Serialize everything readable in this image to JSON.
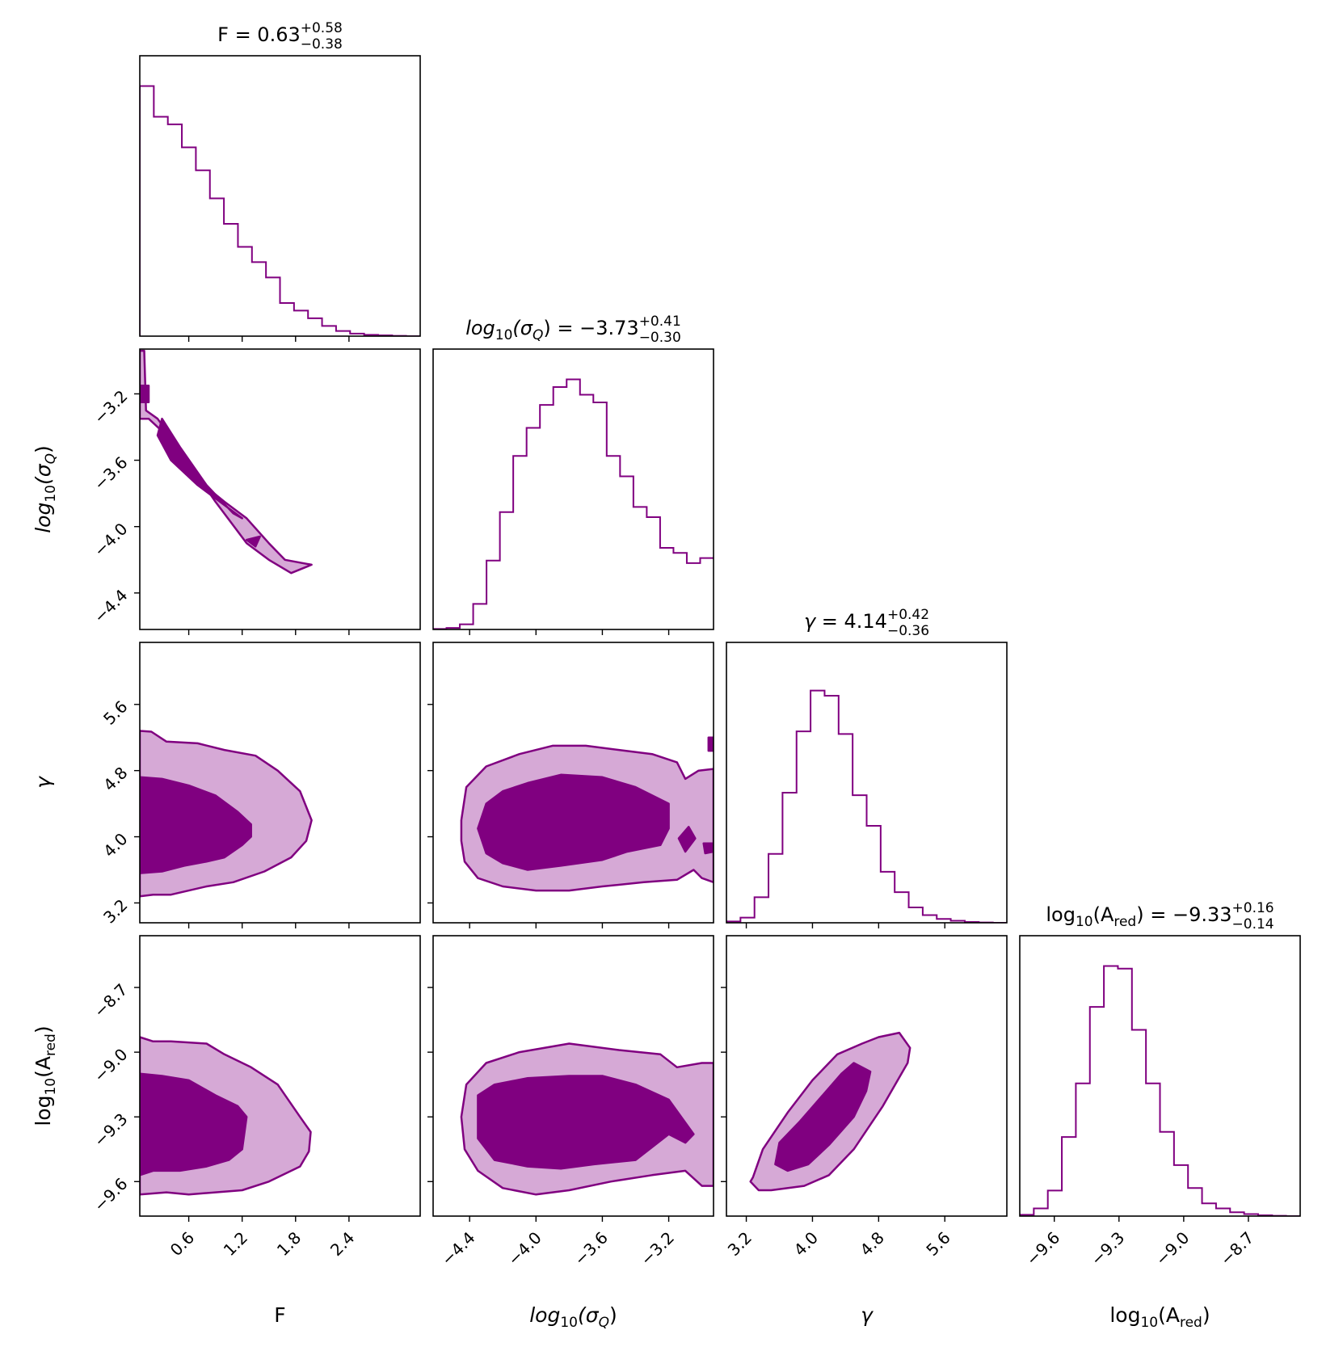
{
  "colors": {
    "line": "#800080",
    "dark": "#800080",
    "light": "#d6a9d6",
    "axis": "#000000"
  },
  "chart_data": {
    "type": "corner",
    "parameters": [
      {
        "key": "F",
        "axis_label": {
          "pre": "F",
          "sub": "",
          "post": ""
        },
        "title": {
          "pre": "F",
          "sub": "",
          "post": "",
          "eq": " = 0.63",
          "sup": "+0.58",
          "inf": "−0.38"
        },
        "range": [
          0.05,
          3.2
        ],
        "ticks": [
          0.6,
          1.2,
          1.8,
          2.4
        ],
        "tick_labels": [
          "0.6",
          "1.2",
          "1.8",
          "2.4"
        ],
        "hist": [
          0.98,
          0.86,
          0.83,
          0.74,
          0.65,
          0.54,
          0.44,
          0.35,
          0.29,
          0.23,
          0.13,
          0.1,
          0.07,
          0.04,
          0.02,
          0.01,
          0.005,
          0.003,
          0.001,
          0.0
        ]
      },
      {
        "key": "log10_sigma_Q",
        "axis_label": {
          "pre": "log",
          "sub": "10",
          "post": "(σ",
          "sub2": "Q",
          "post2": ")",
          "italic": true
        },
        "title": {
          "pre": "log",
          "sub": "10",
          "post": "(σ",
          "sub2": "Q",
          "post2": ")",
          "italic": true,
          "eq": " = −3.73",
          "sup": "+0.41",
          "inf": "−0.30"
        },
        "range": [
          -4.62,
          -2.93
        ],
        "ticks": [
          -4.4,
          -4.0,
          -3.6,
          -3.2
        ],
        "tick_labels": [
          "−4.4",
          "−4.0",
          "−3.6",
          "−3.2"
        ],
        "hist": [
          0.002,
          0.006,
          0.02,
          0.1,
          0.27,
          0.46,
          0.68,
          0.79,
          0.88,
          0.95,
          0.98,
          0.92,
          0.89,
          0.68,
          0.6,
          0.48,
          0.44,
          0.32,
          0.3,
          0.26,
          0.28
        ]
      },
      {
        "key": "gamma",
        "axis_label": {
          "pre": "γ",
          "sub": "",
          "post": "",
          "italic": true
        },
        "title": {
          "pre": "γ",
          "sub": "",
          "post": "",
          "italic": true,
          "eq": " = 4.14",
          "sup": "+0.42",
          "inf": "−0.36"
        },
        "range": [
          2.96,
          6.35
        ],
        "ticks": [
          3.2,
          4.0,
          4.8,
          5.6
        ],
        "tick_labels": [
          "3.2",
          "4.0",
          "4.8",
          "5.6"
        ],
        "hist": [
          0.005,
          0.02,
          0.1,
          0.27,
          0.51,
          0.75,
          0.91,
          0.89,
          0.74,
          0.5,
          0.38,
          0.2,
          0.12,
          0.06,
          0.03,
          0.015,
          0.008,
          0.003,
          0.001,
          0.0
        ]
      },
      {
        "key": "log10_A_red",
        "axis_label": {
          "pre": "log",
          "sub": "10",
          "post": "(A",
          "sub2": "red",
          "post2": ")",
          "italic": false
        },
        "title": {
          "pre": "log",
          "sub": "10",
          "post": "(A",
          "sub2": "red",
          "post2": ")",
          "italic": false,
          "eq": " = −9.33",
          "sup": "+0.16",
          "inf": "−0.14"
        },
        "range": [
          -9.76,
          -8.46
        ],
        "ticks": [
          -9.6,
          -9.3,
          -9.0,
          -8.7
        ],
        "tick_labels": [
          "−9.6",
          "−9.3",
          "−9.0",
          "−8.7"
        ],
        "hist": [
          0.005,
          0.03,
          0.1,
          0.31,
          0.52,
          0.82,
          0.98,
          0.97,
          0.73,
          0.52,
          0.33,
          0.2,
          0.11,
          0.05,
          0.03,
          0.015,
          0.008,
          0.003,
          0.001,
          0.0
        ]
      }
    ],
    "pairs": [
      {
        "row": 1,
        "col": 0,
        "outer": [
          [
            0.05,
            -2.94
          ],
          [
            0.1,
            -2.94
          ],
          [
            0.12,
            -3.3
          ],
          [
            0.25,
            -3.35
          ],
          [
            0.45,
            -3.5
          ],
          [
            0.7,
            -3.72
          ],
          [
            1.0,
            -3.85
          ],
          [
            1.25,
            -3.95
          ],
          [
            1.5,
            -4.1
          ],
          [
            1.68,
            -4.2
          ],
          [
            1.98,
            -4.23
          ],
          [
            1.75,
            -4.28
          ],
          [
            1.5,
            -4.2
          ],
          [
            1.25,
            -4.1
          ],
          [
            0.9,
            -3.85
          ],
          [
            0.45,
            -3.5
          ],
          [
            0.15,
            -3.35
          ],
          [
            0.05,
            -3.35
          ]
        ],
        "inner": [
          [
            [
              0.05,
              -3.15
            ],
            [
              0.15,
              -3.15
            ],
            [
              0.15,
              -3.25
            ],
            [
              0.05,
              -3.25
            ]
          ],
          [
            [
              0.3,
              -3.35
            ],
            [
              0.5,
              -3.52
            ],
            [
              0.8,
              -3.75
            ],
            [
              1.1,
              -3.92
            ],
            [
              1.2,
              -3.95
            ],
            [
              0.7,
              -3.75
            ],
            [
              0.4,
              -3.6
            ],
            [
              0.25,
              -3.45
            ]
          ],
          [
            [
              1.25,
              -4.08
            ],
            [
              1.4,
              -4.06
            ],
            [
              1.35,
              -4.12
            ]
          ]
        ]
      },
      {
        "row": 2,
        "col": 0,
        "outer": [
          [
            0.05,
            5.28
          ],
          [
            0.18,
            5.27
          ],
          [
            0.35,
            5.15
          ],
          [
            0.7,
            5.13
          ],
          [
            1.0,
            5.05
          ],
          [
            1.35,
            4.98
          ],
          [
            1.6,
            4.8
          ],
          [
            1.85,
            4.55
          ],
          [
            1.98,
            4.2
          ],
          [
            1.92,
            3.95
          ],
          [
            1.75,
            3.75
          ],
          [
            1.45,
            3.58
          ],
          [
            1.1,
            3.45
          ],
          [
            0.8,
            3.4
          ],
          [
            0.4,
            3.3
          ],
          [
            0.2,
            3.3
          ],
          [
            0.05,
            3.28
          ]
        ],
        "inner": [
          [
            [
              0.05,
              4.72
            ],
            [
              0.3,
              4.7
            ],
            [
              0.6,
              4.62
            ],
            [
              0.9,
              4.5
            ],
            [
              1.15,
              4.3
            ],
            [
              1.3,
              4.15
            ],
            [
              1.3,
              4.0
            ],
            [
              1.2,
              3.9
            ],
            [
              1.0,
              3.75
            ],
            [
              0.8,
              3.7
            ],
            [
              0.55,
              3.65
            ],
            [
              0.3,
              3.58
            ],
            [
              0.05,
              3.56
            ]
          ]
        ]
      },
      {
        "row": 2,
        "col": 1,
        "outer": [
          [
            -4.45,
            4.2
          ],
          [
            -4.42,
            4.6
          ],
          [
            -4.3,
            4.85
          ],
          [
            -4.1,
            5.0
          ],
          [
            -3.9,
            5.1
          ],
          [
            -3.7,
            5.1
          ],
          [
            -3.5,
            5.05
          ],
          [
            -3.3,
            5.0
          ],
          [
            -3.15,
            4.9
          ],
          [
            -3.1,
            4.7
          ],
          [
            -3.02,
            4.8
          ],
          [
            -2.93,
            4.82
          ],
          [
            -2.93,
            3.45
          ],
          [
            -3.0,
            3.5
          ],
          [
            -3.05,
            3.6
          ],
          [
            -3.15,
            3.48
          ],
          [
            -3.35,
            3.45
          ],
          [
            -3.6,
            3.4
          ],
          [
            -3.8,
            3.35
          ],
          [
            -4.0,
            3.35
          ],
          [
            -4.2,
            3.4
          ],
          [
            -4.35,
            3.5
          ],
          [
            -4.43,
            3.7
          ],
          [
            -4.45,
            3.95
          ]
        ],
        "inner": [
          [
            [
              -4.35,
              4.1
            ],
            [
              -4.3,
              4.4
            ],
            [
              -4.2,
              4.55
            ],
            [
              -4.05,
              4.65
            ],
            [
              -3.85,
              4.75
            ],
            [
              -3.6,
              4.72
            ],
            [
              -3.4,
              4.6
            ],
            [
              -3.2,
              4.4
            ],
            [
              -3.2,
              4.1
            ],
            [
              -3.25,
              3.9
            ],
            [
              -3.45,
              3.82
            ],
            [
              -3.6,
              3.72
            ],
            [
              -3.85,
              3.65
            ],
            [
              -4.05,
              3.6
            ],
            [
              -4.2,
              3.68
            ],
            [
              -4.3,
              3.8
            ]
          ],
          [
            [
              -3.14,
              3.98
            ],
            [
              -3.08,
              4.12
            ],
            [
              -3.04,
              3.98
            ],
            [
              -3.1,
              3.82
            ]
          ],
          [
            [
              -2.99,
              3.92
            ],
            [
              -2.93,
              3.92
            ],
            [
              -2.93,
              3.82
            ],
            [
              -2.98,
              3.8
            ]
          ],
          [
            [
              -2.96,
              5.2
            ],
            [
              -2.93,
              5.2
            ],
            [
              -2.93,
              5.04
            ],
            [
              -2.96,
              5.04
            ]
          ]
        ]
      },
      {
        "row": 3,
        "col": 0,
        "outer": [
          [
            0.05,
            -8.93
          ],
          [
            0.2,
            -8.95
          ],
          [
            0.4,
            -8.95
          ],
          [
            0.8,
            -8.96
          ],
          [
            1.0,
            -9.01
          ],
          [
            1.3,
            -9.07
          ],
          [
            1.6,
            -9.15
          ],
          [
            1.85,
            -9.3
          ],
          [
            1.97,
            -9.37
          ],
          [
            1.95,
            -9.46
          ],
          [
            1.85,
            -9.53
          ],
          [
            1.5,
            -9.6
          ],
          [
            1.2,
            -9.64
          ],
          [
            0.9,
            -9.65
          ],
          [
            0.6,
            -9.66
          ],
          [
            0.35,
            -9.65
          ],
          [
            0.05,
            -9.66
          ]
        ],
        "inner": [
          [
            [
              0.05,
              -9.1
            ],
            [
              0.3,
              -9.11
            ],
            [
              0.6,
              -9.13
            ],
            [
              0.9,
              -9.2
            ],
            [
              1.15,
              -9.25
            ],
            [
              1.25,
              -9.3
            ],
            [
              1.2,
              -9.45
            ],
            [
              1.05,
              -9.5
            ],
            [
              0.8,
              -9.53
            ],
            [
              0.5,
              -9.55
            ],
            [
              0.2,
              -9.55
            ],
            [
              0.05,
              -9.57
            ]
          ]
        ]
      },
      {
        "row": 3,
        "col": 1,
        "outer": [
          [
            -4.45,
            -9.3
          ],
          [
            -4.42,
            -9.15
          ],
          [
            -4.3,
            -9.05
          ],
          [
            -4.1,
            -9.0
          ],
          [
            -3.8,
            -8.96
          ],
          [
            -3.5,
            -8.99
          ],
          [
            -3.25,
            -9.01
          ],
          [
            -3.15,
            -9.07
          ],
          [
            -3.0,
            -9.05
          ],
          [
            -2.93,
            -9.05
          ],
          [
            -2.93,
            -9.62
          ],
          [
            -3.0,
            -9.62
          ],
          [
            -3.1,
            -9.55
          ],
          [
            -3.3,
            -9.57
          ],
          [
            -3.55,
            -9.6
          ],
          [
            -3.8,
            -9.64
          ],
          [
            -4.0,
            -9.66
          ],
          [
            -4.2,
            -9.63
          ],
          [
            -4.35,
            -9.55
          ],
          [
            -4.43,
            -9.45
          ]
        ],
        "inner": [
          [
            [
              -4.35,
              -9.2
            ],
            [
              -4.25,
              -9.15
            ],
            [
              -4.05,
              -9.12
            ],
            [
              -3.8,
              -9.11
            ],
            [
              -3.6,
              -9.11
            ],
            [
              -3.4,
              -9.15
            ],
            [
              -3.2,
              -9.22
            ],
            [
              -3.05,
              -9.38
            ],
            [
              -3.1,
              -9.42
            ],
            [
              -3.2,
              -9.38
            ],
            [
              -3.4,
              -9.5
            ],
            [
              -3.65,
              -9.52
            ],
            [
              -3.85,
              -9.54
            ],
            [
              -4.05,
              -9.53
            ],
            [
              -4.25,
              -9.5
            ],
            [
              -4.35,
              -9.4
            ]
          ]
        ]
      },
      {
        "row": 3,
        "col": 2,
        "outer": [
          [
            3.28,
            -9.58
          ],
          [
            3.4,
            -9.45
          ],
          [
            3.7,
            -9.28
          ],
          [
            4.0,
            -9.13
          ],
          [
            4.3,
            -9.01
          ],
          [
            4.6,
            -8.96
          ],
          [
            4.8,
            -8.93
          ],
          [
            5.05,
            -8.91
          ],
          [
            5.18,
            -8.98
          ],
          [
            5.15,
            -9.05
          ],
          [
            5.0,
            -9.15
          ],
          [
            4.85,
            -9.25
          ],
          [
            4.5,
            -9.45
          ],
          [
            4.2,
            -9.57
          ],
          [
            3.9,
            -9.62
          ],
          [
            3.5,
            -9.64
          ],
          [
            3.35,
            -9.64
          ],
          [
            3.25,
            -9.6
          ]
        ],
        "inner": [
          [
            [
              3.55,
              -9.52
            ],
            [
              3.6,
              -9.42
            ],
            [
              3.85,
              -9.32
            ],
            [
              4.1,
              -9.21
            ],
            [
              4.35,
              -9.1
            ],
            [
              4.5,
              -9.05
            ],
            [
              4.7,
              -9.09
            ],
            [
              4.65,
              -9.18
            ],
            [
              4.5,
              -9.3
            ],
            [
              4.2,
              -9.43
            ],
            [
              3.95,
              -9.52
            ],
            [
              3.7,
              -9.55
            ]
          ]
        ]
      }
    ]
  }
}
